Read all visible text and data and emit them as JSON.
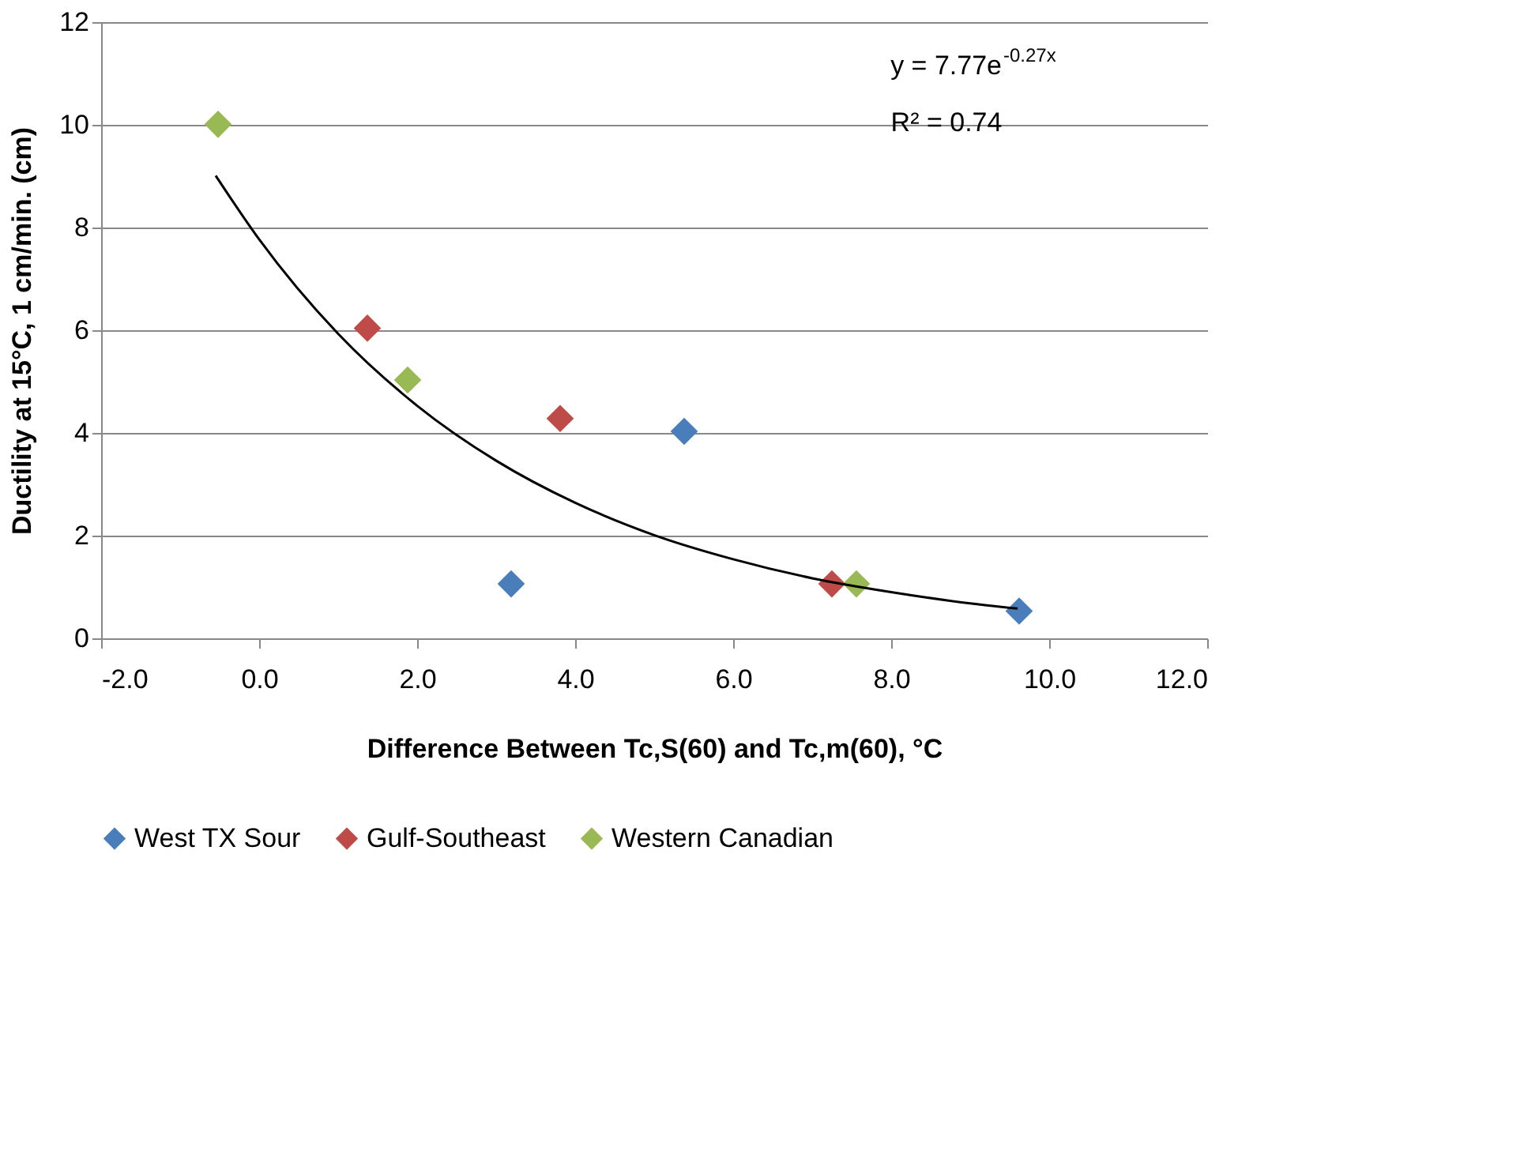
{
  "chart_data": {
    "type": "scatter",
    "xlabel": "Difference Between Tc,S(60)  and Tc,m(60), °C",
    "ylabel": "Ductility at 15°C, 1 cm/min. (cm)",
    "series": [
      {
        "name": "West TX Sour",
        "color": "#4a7ebb",
        "x": [
          3.19,
          5.38,
          9.62
        ],
        "values": [
          1.06,
          4.03,
          0.53
        ]
      },
      {
        "name": "Gulf-Southeast",
        "color": "#be4b48",
        "x": [
          1.37,
          3.81,
          7.25
        ],
        "values": [
          6.04,
          4.28,
          1.06
        ]
      },
      {
        "name": "Western Canadian",
        "color": "#98b954",
        "x": [
          -0.52,
          1.88,
          7.56
        ],
        "values": [
          10.01,
          5.03,
          1.06
        ]
      },
      {
        "type": "line",
        "color": "#000000",
        "marker": "none",
        "line_style": "solid",
        "x": [
          -0.55,
          0,
          1,
          2,
          3,
          4,
          5,
          6,
          7,
          8,
          9,
          9.6
        ],
        "values": [
          9.01,
          7.77,
          5.93,
          4.53,
          3.46,
          2.64,
          2.01,
          1.54,
          1.17,
          0.9,
          0.68,
          0.58
        ]
      }
    ],
    "xlim": [
      -2,
      12
    ],
    "xticks": [
      {
        "value": -2,
        "label": "-2.0"
      },
      {
        "value": 0,
        "label": "0.0"
      },
      {
        "value": 2,
        "label": "2.0"
      },
      {
        "value": 4,
        "label": "4.0"
      },
      {
        "value": 6,
        "label": "6.0"
      },
      {
        "value": 8,
        "label": "8.0"
      },
      {
        "value": 10,
        "label": "10.0"
      },
      {
        "value": 12,
        "label": "12.0"
      }
    ],
    "ylim": [
      0,
      12
    ],
    "yticks": [
      0,
      2,
      4,
      6,
      8,
      10,
      12
    ],
    "annotations": [
      "y = 7.77e$^{-0.27x}$",
      "R² = 0.74"
    ],
    "grid": "y",
    "legend": "bottom",
    "marker": "diamond"
  }
}
